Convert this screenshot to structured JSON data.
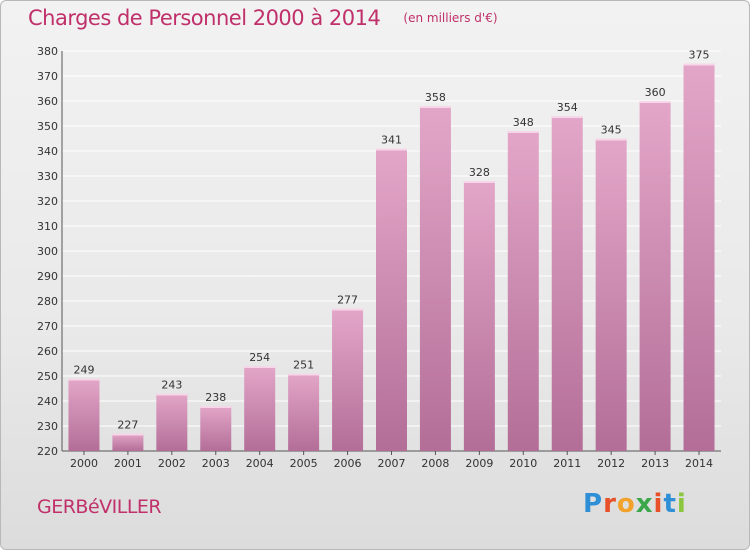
{
  "header": {
    "title": "Charges de Personnel 2000 à 2014",
    "subtitle": "(en milliers d'€)"
  },
  "footer": {
    "commune": "GERBéVILLER",
    "logo_letters": [
      "P",
      "r",
      "o",
      "x",
      "i",
      "t",
      "i"
    ],
    "logo_colors": [
      "#2e8fd6",
      "#e8502a",
      "#f2a22a",
      "#3aa84a",
      "#e8502a",
      "#2e8fd6",
      "#8cc63f"
    ]
  },
  "chart_data": {
    "type": "bar",
    "categories": [
      "2000",
      "2001",
      "2002",
      "2003",
      "2004",
      "2005",
      "2006",
      "2007",
      "2008",
      "2009",
      "2010",
      "2011",
      "2012",
      "2013",
      "2014"
    ],
    "values": [
      249,
      227,
      243,
      238,
      254,
      251,
      277,
      341,
      358,
      328,
      348,
      354,
      345,
      360,
      375
    ],
    "title": "Charges de Personnel 2000 à 2014",
    "ylim": [
      220,
      380
    ],
    "yticks": [
      220,
      230,
      240,
      250,
      260,
      270,
      280,
      290,
      300,
      310,
      320,
      330,
      340,
      350,
      360,
      370,
      380
    ],
    "grid": true,
    "bar_color_top": "#e3a6c8",
    "bar_color_bottom": "#b36e98"
  }
}
